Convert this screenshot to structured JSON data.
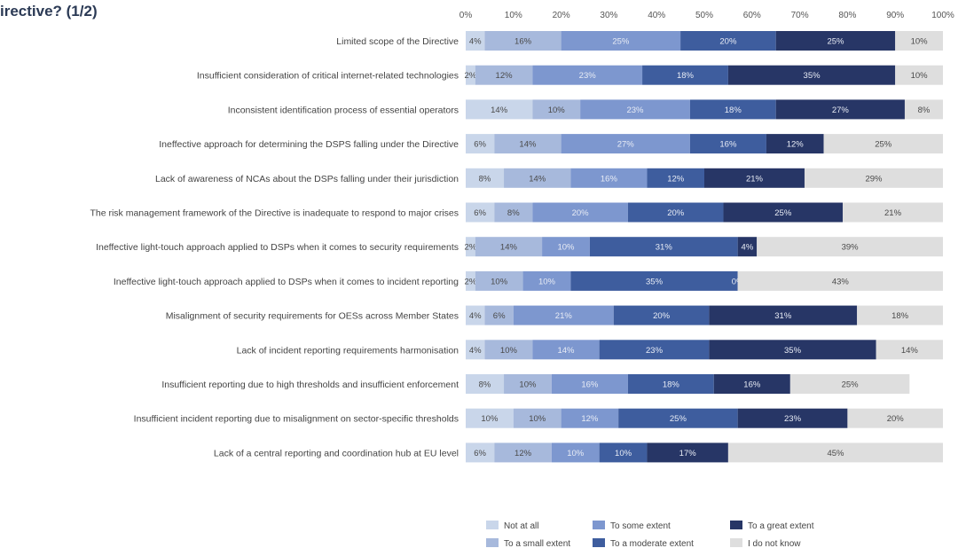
{
  "chart_data": {
    "type": "bar",
    "orientation": "horizontal",
    "stacked": true,
    "title": "irective? (1/2)",
    "xlim": [
      0,
      100
    ],
    "x_ticks": [
      "0%",
      "10%",
      "20%",
      "30%",
      "40%",
      "50%",
      "60%",
      "70%",
      "80%",
      "90%",
      "100%"
    ],
    "grid": false,
    "legend_position": "bottom",
    "categories": [
      "Limited scope of the Directive",
      "Insufficient consideration of critical internet-related technologies",
      "Inconsistent identification process of essential operators",
      "Ineffective approach for determining the DSPS falling under the Directive",
      "Lack of awareness of NCAs about the DSPs falling under their jurisdiction",
      "The risk management framework of the Directive is inadequate to respond to major crises",
      "Ineffective light-touch approach applied to DSPs when it comes to security requirements",
      "Ineffective light-touch approach applied to DSPs when it comes to incident reporting",
      "Misalignment of security requirements for OESs across Member States",
      "Lack of incident reporting requirements harmonisation",
      "Insufficient reporting due to high thresholds and insufficient enforcement",
      "Insufficient incident reporting due to misalignment on sector-specific thresholds",
      "Lack of a central reporting and coordination hub at EU level"
    ],
    "series": [
      {
        "name": "Not at all",
        "color": "#c9d6ea",
        "values": [
          4,
          2,
          14,
          6,
          8,
          6,
          2,
          2,
          4,
          4,
          8,
          10,
          6
        ]
      },
      {
        "name": "To a small extent",
        "color": "#a7b9dc",
        "values": [
          16,
          12,
          10,
          14,
          14,
          8,
          14,
          10,
          6,
          10,
          10,
          10,
          12
        ]
      },
      {
        "name": "To some extent",
        "color": "#7d97cf",
        "values": [
          25,
          23,
          23,
          27,
          16,
          20,
          10,
          10,
          21,
          14,
          16,
          12,
          10
        ]
      },
      {
        "name": "To a moderate extent",
        "color": "#3e5d9e",
        "values": [
          20,
          18,
          18,
          16,
          12,
          20,
          31,
          35,
          20,
          23,
          18,
          25,
          10
        ]
      },
      {
        "name": "To a great extent",
        "color": "#273666",
        "values": [
          25,
          35,
          27,
          12,
          21,
          25,
          4,
          0,
          31,
          35,
          16,
          23,
          17
        ]
      },
      {
        "name": "I do not know",
        "color": "#dedede",
        "values": [
          10,
          10,
          8,
          25,
          29,
          21,
          39,
          43,
          18,
          14,
          25,
          20,
          45
        ]
      }
    ],
    "legend_labels": [
      "Not at all",
      "To a small extent",
      "To some extent",
      "To a moderate extent",
      "To a great extent",
      "I do not know"
    ]
  }
}
